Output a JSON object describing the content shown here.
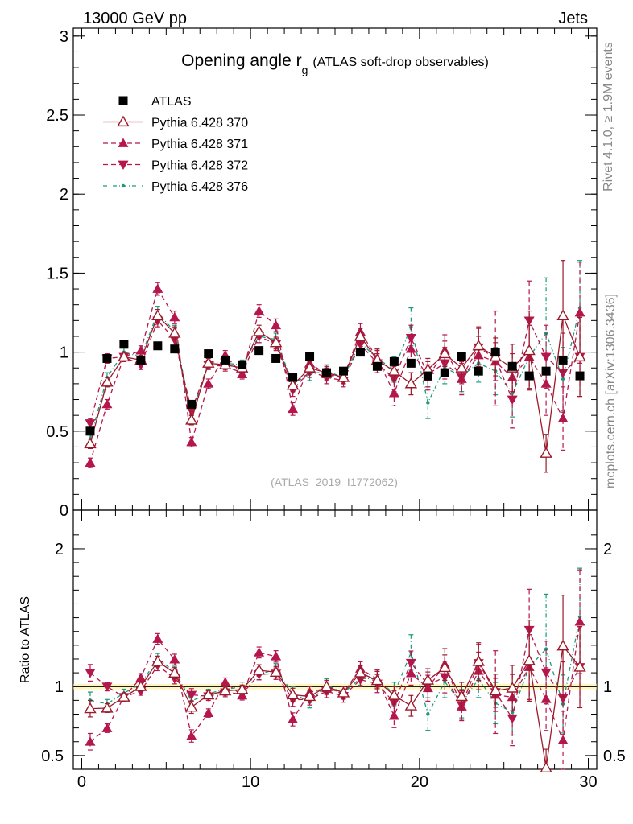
{
  "header": {
    "left": "13000 GeV pp",
    "right": "Jets"
  },
  "side_labels": {
    "rivet": "Rivet 4.1.0, ≥ 1.9M events",
    "mcplots": "mcplots.cern.ch [arXiv:1306.3436]"
  },
  "chart_data": {
    "type": "scatter",
    "title": "Opening angle r",
    "title_sub": "g",
    "title_suffix": "(ATLAS soft-drop observables)",
    "analysis": "(ATLAS_2019_I1772062)",
    "xlabel": "",
    "ylabel": "",
    "xlim": [
      -0.5,
      30.5
    ],
    "ylim": [
      0,
      3.05
    ],
    "xticks": [
      "0",
      "10",
      "20",
      "30"
    ],
    "yticks": [
      "0",
      "0.5",
      "1",
      "1.5",
      "2",
      "2.5",
      "3"
    ],
    "legend_position": "top-left",
    "x": [
      0.5,
      1.5,
      2.5,
      3.5,
      4.5,
      5.5,
      6.5,
      7.5,
      8.5,
      9.5,
      10.5,
      11.5,
      12.5,
      13.5,
      14.5,
      15.5,
      16.5,
      17.5,
      18.5,
      19.5,
      20.5,
      21.5,
      22.5,
      23.5,
      24.5,
      25.5,
      26.5,
      27.5,
      28.5,
      29.5
    ],
    "series": [
      {
        "name": "ATLAS",
        "color": "#000000",
        "marker": "square",
        "dash": "",
        "values": [
          0.5,
          0.96,
          1.05,
          0.95,
          1.04,
          1.02,
          0.67,
          0.99,
          0.95,
          0.92,
          1.01,
          0.96,
          0.84,
          0.97,
          0.87,
          0.88,
          1.0,
          0.91,
          0.94,
          0.93,
          0.85,
          0.87,
          0.97,
          0.88,
          1.0,
          0.91,
          0.85,
          0.88,
          0.95,
          0.85
        ],
        "errors": [
          0.01,
          0.01,
          0.01,
          0.01,
          0.01,
          0.01,
          0.01,
          0.01,
          0.01,
          0.01,
          0.01,
          0.01,
          0.01,
          0.01,
          0.01,
          0.01,
          0.01,
          0.01,
          0.01,
          0.01,
          0.01,
          0.01,
          0.01,
          0.01,
          0.01,
          0.01,
          0.01,
          0.01,
          0.01,
          0.01
        ]
      },
      {
        "name": "Pythia 6.428 370",
        "color": "#9a1a2a",
        "marker": "triangle-up-open",
        "dash": "",
        "values": [
          0.42,
          0.81,
          0.97,
          0.95,
          1.23,
          1.12,
          0.57,
          0.93,
          0.92,
          0.9,
          1.13,
          1.06,
          0.79,
          0.9,
          0.87,
          0.84,
          1.1,
          0.95,
          0.88,
          0.8,
          0.89,
          0.99,
          0.9,
          1.04,
          0.97,
          0.9,
          1.01,
          0.36,
          1.23,
          0.97
        ],
        "errors": [
          0.03,
          0.03,
          0.03,
          0.03,
          0.04,
          0.04,
          0.03,
          0.03,
          0.03,
          0.03,
          0.04,
          0.04,
          0.04,
          0.04,
          0.04,
          0.04,
          0.05,
          0.06,
          0.06,
          0.07,
          0.07,
          0.08,
          0.1,
          0.12,
          0.12,
          0.15,
          0.25,
          0.12,
          0.35,
          0.25
        ]
      },
      {
        "name": "Pythia 6.428 371",
        "color": "#b5174d",
        "marker": "triangle-up",
        "dash": "6,4",
        "values": [
          0.3,
          0.67,
          0.97,
          1.01,
          1.4,
          1.22,
          0.43,
          0.8,
          0.98,
          0.86,
          1.26,
          1.17,
          0.64,
          0.93,
          0.86,
          0.84,
          1.13,
          0.96,
          0.74,
          1.02,
          0.84,
          1.01,
          0.83,
          0.98,
          0.94,
          0.84,
          0.97,
          0.8,
          0.58,
          1.25
        ],
        "errors": [
          0.03,
          0.03,
          0.03,
          0.03,
          0.04,
          0.04,
          0.03,
          0.03,
          0.03,
          0.03,
          0.04,
          0.04,
          0.04,
          0.04,
          0.04,
          0.04,
          0.05,
          0.06,
          0.08,
          0.08,
          0.08,
          0.1,
          0.1,
          0.12,
          0.12,
          0.15,
          0.2,
          0.2,
          0.2,
          0.32
        ]
      },
      {
        "name": "Pythia 6.428 372",
        "color": "#b5174d",
        "marker": "triangle-down",
        "dash": "6,4",
        "values": [
          0.55,
          0.96,
          0.97,
          0.92,
          1.2,
          1.08,
          0.63,
          0.92,
          0.91,
          0.87,
          1.1,
          1.05,
          0.76,
          0.88,
          0.84,
          0.82,
          1.05,
          0.93,
          0.83,
          1.09,
          0.86,
          0.93,
          0.84,
          1.03,
          0.96,
          0.7,
          1.2,
          0.97,
          0.87,
          0.97
        ],
        "errors": [
          0.03,
          0.03,
          0.03,
          0.03,
          0.04,
          0.04,
          0.03,
          0.03,
          0.03,
          0.03,
          0.04,
          0.04,
          0.04,
          0.04,
          0.04,
          0.04,
          0.05,
          0.06,
          0.08,
          0.08,
          0.08,
          0.1,
          0.1,
          0.12,
          0.3,
          0.18,
          0.25,
          0.2,
          0.25,
          0.25
        ]
      },
      {
        "name": "Pythia 6.428 376",
        "color": "#1a9a7a",
        "marker": "dot",
        "dash": "5,3,1,3",
        "values": [
          0.45,
          0.84,
          1.0,
          0.97,
          1.25,
          1.13,
          0.6,
          0.94,
          0.93,
          0.92,
          1.1,
          1.08,
          0.8,
          0.86,
          0.88,
          0.84,
          1.06,
          0.96,
          0.89,
          1.16,
          0.68,
          0.9,
          0.85,
          0.93,
          0.88,
          0.74,
          0.97,
          1.12,
          0.83,
          1.28
        ],
        "errors": [
          0.03,
          0.03,
          0.03,
          0.03,
          0.04,
          0.04,
          0.03,
          0.03,
          0.03,
          0.03,
          0.04,
          0.04,
          0.04,
          0.04,
          0.04,
          0.04,
          0.05,
          0.06,
          0.08,
          0.12,
          0.1,
          0.1,
          0.1,
          0.12,
          0.15,
          0.15,
          0.2,
          0.35,
          0.2,
          0.3
        ]
      }
    ],
    "ratio": {
      "ylabel": "Ratio to ATLAS",
      "ylim": [
        0.4,
        2.28
      ],
      "yticks": [
        "0.5",
        "1",
        "2"
      ],
      "reference": 1,
      "ref_band": 0.02
    }
  }
}
